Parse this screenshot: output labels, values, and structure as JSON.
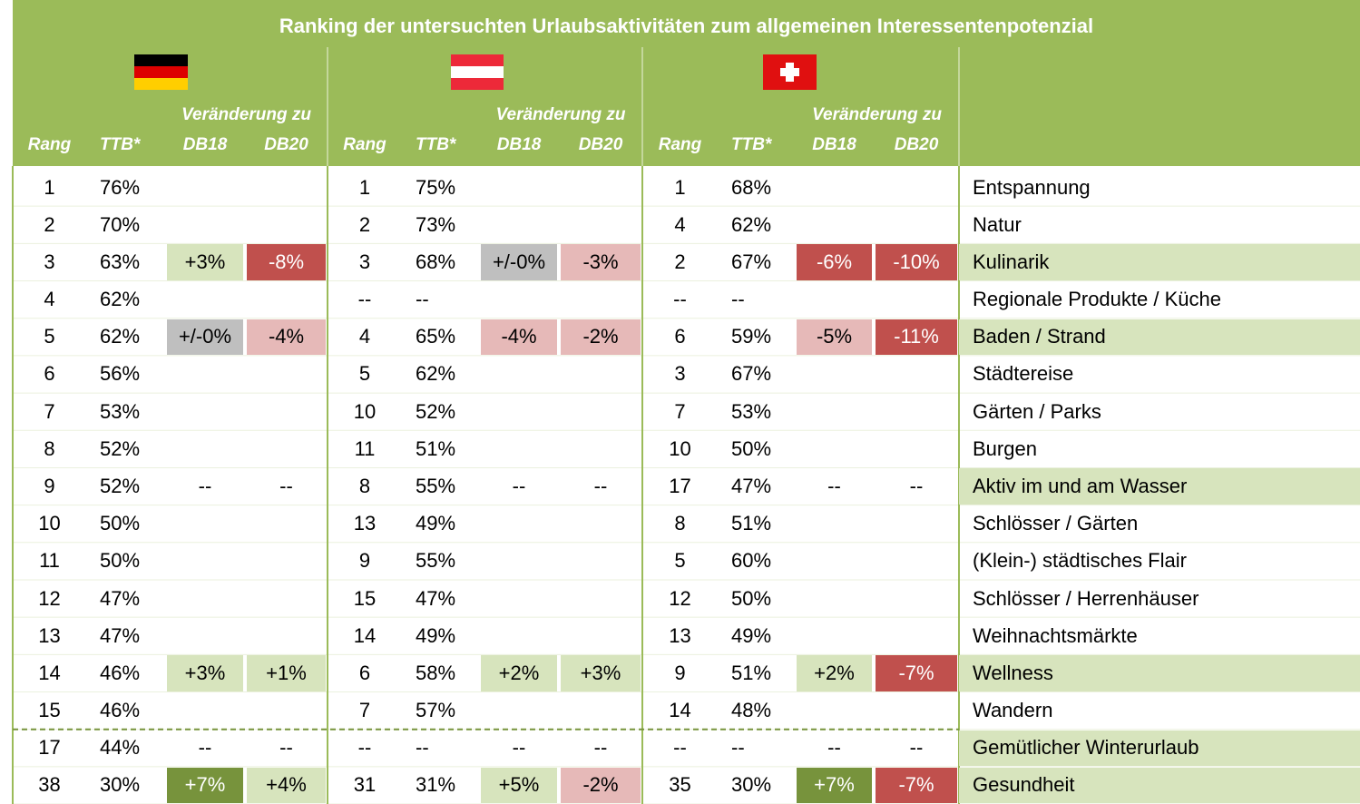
{
  "header": {
    "title": "Ranking der untersuchten Urlaubsaktivitäten zum allgemeinen Interessentenpotenzial",
    "groups": [
      {
        "change_label": "Veränderung zu",
        "columns": [
          "Rang",
          "TTB*",
          "DB18",
          "DB20"
        ]
      },
      {
        "change_label": "Veränderung zu",
        "columns": [
          "Rang",
          "TTB*",
          "DB18",
          "DB20"
        ]
      },
      {
        "change_label": "Veränderung zu",
        "columns": [
          "Rang",
          "TTB*",
          "DB18",
          "DB20"
        ]
      }
    ]
  },
  "table": {
    "rows": [
      [
        "1",
        "76%",
        "",
        "",
        "1",
        "75%",
        "",
        "",
        "1",
        "68%",
        "",
        "",
        "Entspannung"
      ],
      [
        "2",
        "70%",
        "",
        "",
        "2",
        "73%",
        "",
        "",
        "4",
        "62%",
        "",
        "",
        "Natur"
      ],
      [
        "3",
        "63%",
        "+3%",
        "-8%",
        "3",
        "68%",
        "+/-0%",
        "-3%",
        "2",
        "67%",
        "-6%",
        "-10%",
        "Kulinarik"
      ],
      [
        "4",
        "62%",
        "",
        "",
        "--",
        "--",
        "",
        "",
        "--",
        "--",
        "",
        "",
        "Regionale Produkte / Küche"
      ],
      [
        "5",
        "62%",
        "+/-0%",
        "-4%",
        "4",
        "65%",
        "-4%",
        "-2%",
        "6",
        "59%",
        "-5%",
        "-11%",
        "Baden / Strand"
      ],
      [
        "6",
        "56%",
        "",
        "",
        "5",
        "62%",
        "",
        "",
        "3",
        "67%",
        "",
        "",
        "Städtereise"
      ],
      [
        "7",
        "53%",
        "",
        "",
        "10",
        "52%",
        "",
        "",
        "7",
        "53%",
        "",
        "",
        "Gärten / Parks"
      ],
      [
        "8",
        "52%",
        "",
        "",
        "11",
        "51%",
        "",
        "",
        "10",
        "50%",
        "",
        "",
        "Burgen"
      ],
      [
        "9",
        "52%",
        "--",
        "--",
        "8",
        "55%",
        "--",
        "--",
        "17",
        "47%",
        "--",
        "--",
        "Aktiv im und am Wasser"
      ],
      [
        "10",
        "50%",
        "",
        "",
        "13",
        "49%",
        "",
        "",
        "8",
        "51%",
        "",
        "",
        "Schlösser / Gärten"
      ],
      [
        "11",
        "50%",
        "",
        "",
        "9",
        "55%",
        "",
        "",
        "5",
        "60%",
        "",
        "",
        "(Klein-) städtisches Flair"
      ],
      [
        "12",
        "47%",
        "",
        "",
        "15",
        "47%",
        "",
        "",
        "12",
        "50%",
        "",
        "",
        "Schlösser / Herrenhäuser"
      ],
      [
        "13",
        "47%",
        "",
        "",
        "14",
        "49%",
        "",
        "",
        "13",
        "49%",
        "",
        "",
        "Weihnachtsmärkte"
      ],
      [
        "14",
        "46%",
        "+3%",
        "+1%",
        "6",
        "58%",
        "+2%",
        "+3%",
        "9",
        "51%",
        "+2%",
        "-7%",
        "Wellness"
      ],
      [
        "15",
        "46%",
        "",
        "",
        "7",
        "57%",
        "",
        "",
        "14",
        "48%",
        "",
        "",
        "Wandern"
      ],
      [
        "17",
        "44%",
        "--",
        "--",
        "--",
        "--",
        "--",
        "--",
        "--",
        "--",
        "--",
        "--",
        "Gemütlicher Winterurlaub"
      ],
      [
        "38",
        "30%",
        "+7%",
        "+4%",
        "31",
        "31%",
        "+5%",
        "-2%",
        "35",
        "30%",
        "+7%",
        "-7%",
        "Gesundheit"
      ]
    ]
  }
}
